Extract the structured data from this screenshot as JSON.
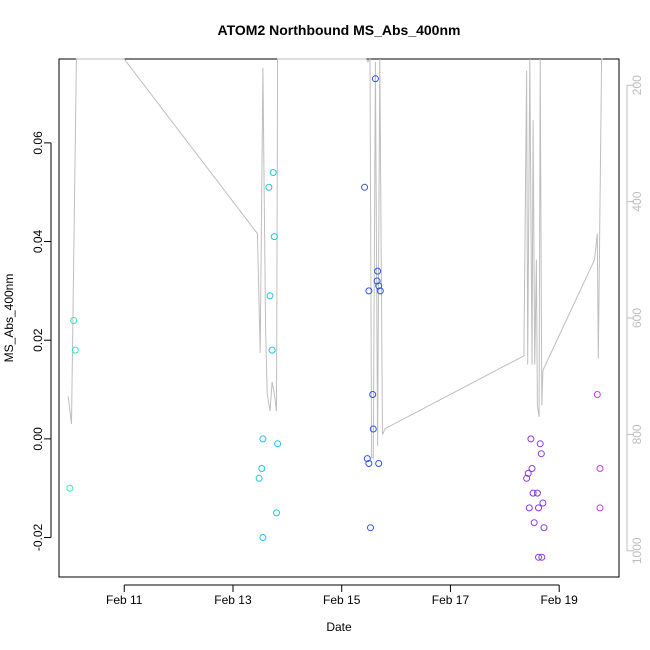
{
  "chart_data": {
    "type": "scatter",
    "title": "ATOM2 Northbound MS_Abs_400nm",
    "xlabel": "Date",
    "ylabel": "MS_Abs_400nm",
    "x_ticks": [
      {
        "value": 11,
        "label": "Feb 11"
      },
      {
        "value": 13,
        "label": "Feb 13"
      },
      {
        "value": 15,
        "label": "Feb 15"
      },
      {
        "value": 17,
        "label": "Feb 17"
      },
      {
        "value": 19,
        "label": "Feb 19"
      }
    ],
    "y_ticks": [
      -0.02,
      0.0,
      0.02,
      0.04,
      0.06
    ],
    "y_tick_labels": [
      "-0.02",
      "0.00",
      "0.02",
      "0.04",
      "0.06"
    ],
    "y2_ticks": [
      200,
      400,
      600,
      800,
      1000
    ],
    "y2_tick_labels": [
      "200",
      "400",
      "600",
      "800",
      "1000"
    ],
    "xlim": [
      9.8,
      20.1
    ],
    "ylim": [
      -0.028,
      0.077
    ],
    "y2lim": [
      1045,
      155
    ],
    "grid": false,
    "line_color": "#bebebe",
    "series": [
      {
        "color": "#2ee8c0",
        "points": [
          [
            10.0,
            -0.01
          ],
          [
            10.07,
            0.024
          ],
          [
            10.1,
            0.018
          ]
        ]
      },
      {
        "color": "#22c4ea",
        "points": [
          [
            13.48,
            -0.008
          ],
          [
            13.53,
            -0.006
          ],
          [
            13.55,
            0.0
          ],
          [
            13.55,
            -0.02
          ],
          [
            13.66,
            0.051
          ],
          [
            13.68,
            0.029
          ],
          [
            13.72,
            0.018
          ],
          [
            13.74,
            0.054
          ],
          [
            13.76,
            0.041
          ],
          [
            13.8,
            -0.015
          ],
          [
            13.82,
            -0.001
          ]
        ]
      },
      {
        "color": "#2f55e6",
        "points": [
          [
            15.42,
            0.051
          ],
          [
            15.47,
            -0.004
          ],
          [
            15.5,
            0.03
          ],
          [
            15.5,
            -0.005
          ],
          [
            15.53,
            -0.018
          ],
          [
            15.57,
            0.009
          ],
          [
            15.58,
            0.002
          ],
          [
            15.62,
            0.073
          ],
          [
            15.65,
            0.032
          ],
          [
            15.66,
            0.034
          ],
          [
            15.68,
            0.031
          ],
          [
            15.68,
            -0.005
          ],
          [
            15.71,
            0.03
          ]
        ]
      },
      {
        "color": "#8a3be2",
        "points": [
          [
            18.4,
            -0.008
          ],
          [
            18.43,
            -0.007
          ],
          [
            18.45,
            -0.014
          ],
          [
            18.48,
            0.0
          ],
          [
            18.5,
            -0.006
          ],
          [
            18.52,
            -0.011
          ],
          [
            18.54,
            -0.017
          ],
          [
            18.6,
            -0.011
          ],
          [
            18.62,
            -0.014
          ],
          [
            18.62,
            -0.024
          ],
          [
            18.65,
            -0.001
          ],
          [
            18.67,
            -0.003
          ],
          [
            18.68,
            -0.024
          ],
          [
            18.7,
            -0.013
          ],
          [
            18.72,
            -0.018
          ]
        ]
      },
      {
        "color": "#d43ae6",
        "points": [
          [
            19.7,
            0.009
          ],
          [
            19.75,
            -0.006
          ],
          [
            19.75,
            -0.014
          ]
        ]
      }
    ],
    "line_y2": {
      "x": [
        9.97,
        10.03,
        10.12,
        10.15,
        10.2,
        11.0,
        13.45,
        13.5,
        13.55,
        13.6,
        13.63,
        13.68,
        13.72,
        13.76,
        13.8,
        13.82,
        13.86,
        13.9,
        15.3,
        15.45,
        15.48,
        15.52,
        15.55,
        15.58,
        15.62,
        15.66,
        15.7,
        15.75,
        15.8,
        18.35,
        18.4,
        18.42,
        18.46,
        18.5,
        18.52,
        18.55,
        18.58,
        18.6,
        18.63,
        18.65,
        18.68,
        18.7,
        19.65,
        19.7,
        19.72,
        19.78,
        19.8
      ],
      "y": [
        735,
        782,
        155,
        140,
        150,
        150,
        455,
        660,
        170,
        620,
        730,
        760,
        710,
        730,
        760,
        140,
        150,
        140,
        140,
        150,
        160,
        155,
        840,
        840,
        160,
        820,
        150,
        800,
        790,
        665,
        175,
        680,
        140,
        680,
        260,
        680,
        500,
        750,
        770,
        140,
        750,
        690,
        500,
        455,
        670,
        140,
        140
      ]
    }
  }
}
